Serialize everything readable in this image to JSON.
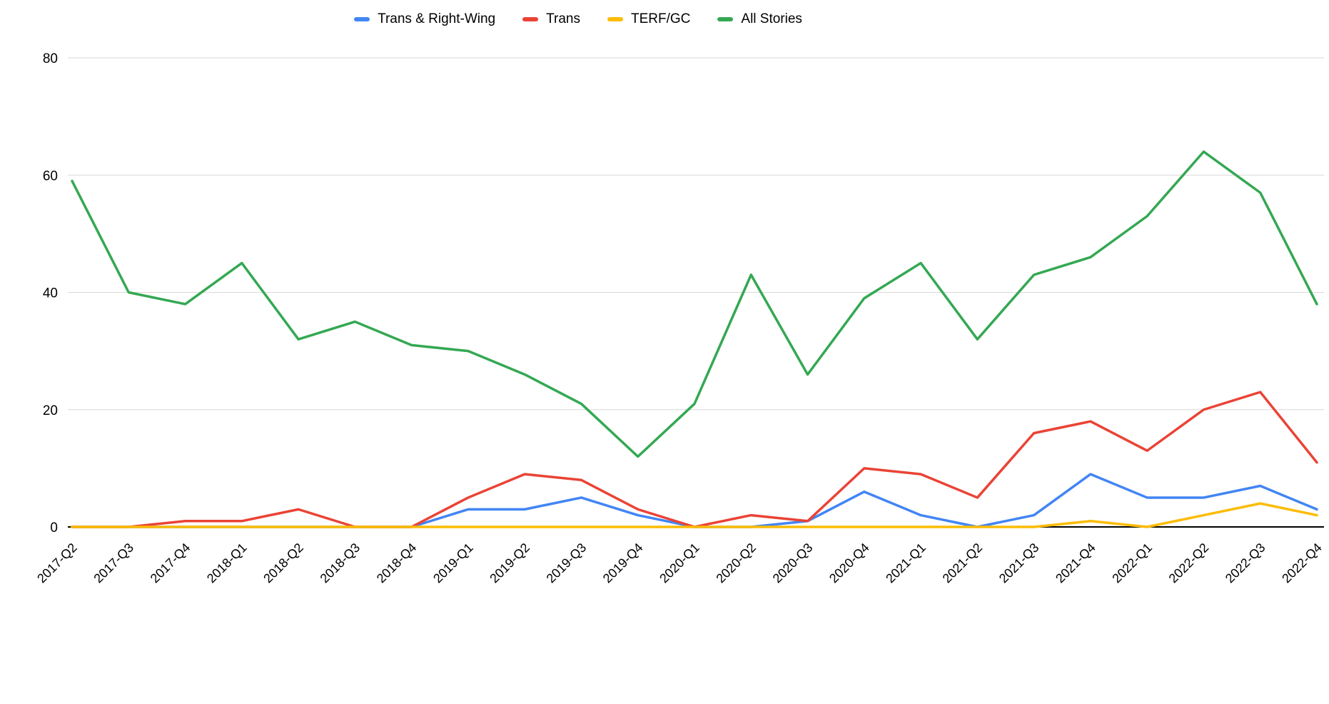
{
  "chart_data": {
    "type": "line",
    "title": "",
    "xlabel": "",
    "ylabel": "",
    "ylim": [
      0,
      80
    ],
    "yticks": [
      0,
      20,
      40,
      60,
      80
    ],
    "grid": "horizontal",
    "legend_position": "top-center",
    "axis_color": "#000000",
    "gridline_color": "#d9d9d9",
    "categories": [
      "2017-Q2",
      "2017-Q3",
      "2017-Q4",
      "2018-Q1",
      "2018-Q2",
      "2018-Q3",
      "2018-Q4",
      "2019-Q1",
      "2019-Q2",
      "2019-Q3",
      "2019-Q4",
      "2020-Q1",
      "2020-Q2",
      "2020-Q3",
      "2020-Q4",
      "2021-Q1",
      "2021-Q2",
      "2021-Q3",
      "2021-Q4",
      "2022-Q1",
      "2022-Q2",
      "2022-Q3",
      "2022-Q4"
    ],
    "series": [
      {
        "name": "Trans & Right-Wing",
        "color": "#4285f4",
        "values": [
          0,
          0,
          0,
          0,
          0,
          0,
          0,
          3,
          3,
          5,
          2,
          0,
          0,
          1,
          6,
          2,
          0,
          2,
          9,
          5,
          5,
          7,
          3
        ]
      },
      {
        "name": "Trans",
        "color": "#ea4335",
        "values": [
          0,
          0,
          1,
          1,
          3,
          0,
          0,
          5,
          9,
          8,
          3,
          0,
          2,
          1,
          10,
          9,
          5,
          16,
          18,
          13,
          20,
          23,
          11
        ]
      },
      {
        "name": "TERF/GC",
        "color": "#fbbc04",
        "values": [
          0,
          0,
          0,
          0,
          0,
          0,
          0,
          0,
          0,
          0,
          0,
          0,
          0,
          0,
          0,
          0,
          0,
          0,
          1,
          0,
          2,
          4,
          2
        ]
      },
      {
        "name": "All Stories",
        "color": "#34a853",
        "values": [
          59,
          40,
          38,
          45,
          32,
          35,
          31,
          30,
          26,
          21,
          12,
          21,
          43,
          26,
          39,
          45,
          32,
          43,
          46,
          53,
          64,
          57,
          38
        ]
      }
    ]
  }
}
